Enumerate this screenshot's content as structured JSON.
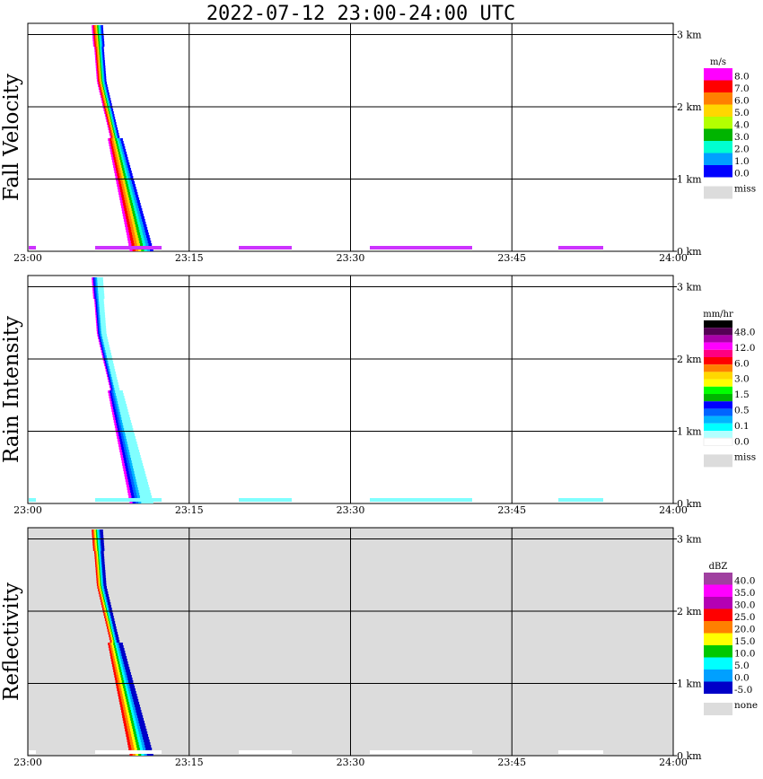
{
  "title": "2022-07-12   23:00-24:00 UTC",
  "chart_data": [
    {
      "type": "heatmap",
      "ylabel": "Fall Velocity",
      "x_ticks": [
        "23:00",
        "23:15",
        "23:30",
        "23:45",
        "24:00"
      ],
      "y_ticks": [
        "0 km",
        "1 km",
        "2 km",
        "3 km"
      ],
      "xlim": [
        "23:00",
        "24:00"
      ],
      "ylim_km": [
        0,
        3.2
      ],
      "grid": true,
      "background": "#ffffff",
      "legend": {
        "unit": "m/s",
        "labels": [
          "8.0",
          "7.0",
          "6.0",
          "5.0",
          "4.0",
          "3.0",
          "2.0",
          "1.0",
          "0.0"
        ],
        "colors": [
          "#ff00ff",
          "#ff0000",
          "#ff8000",
          "#ffd700",
          "#b4ff00",
          "#00b400",
          "#00ffd0",
          "#00a0ff",
          "#0000ff"
        ],
        "miss_label": "miss",
        "miss_color": "#dcdcdc"
      }
    },
    {
      "type": "heatmap",
      "ylabel": "Rain Intensity",
      "x_ticks": [
        "23:00",
        "23:15",
        "23:30",
        "23:45",
        "24:00"
      ],
      "y_ticks": [
        "0 km",
        "1 km",
        "2 km",
        "3 km"
      ],
      "xlim": [
        "23:00",
        "24:00"
      ],
      "ylim_km": [
        0,
        3.2
      ],
      "grid": true,
      "background": "#ffffff",
      "legend": {
        "unit": "mm/hr",
        "labels": [
          "48.0",
          "12.0",
          "6.0",
          "3.0",
          "1.5",
          "0.5",
          "0.1",
          "0.0"
        ],
        "colors": [
          "#000000",
          "#550055",
          "#aa00aa",
          "#ff00ff",
          "#ff0080",
          "#ff0000",
          "#ff8000",
          "#ffd700",
          "#ffff00",
          "#00ff00",
          "#00b400",
          "#0000ff",
          "#0064ff",
          "#00b4ff",
          "#00ffff",
          "#b4ffff",
          "#ffffff"
        ],
        "miss_label": "miss",
        "miss_color": "#dcdcdc"
      }
    },
    {
      "type": "heatmap",
      "ylabel": "Reflectivity",
      "x_ticks": [
        "23:00",
        "23:15",
        "23:30",
        "23:45",
        "24:00"
      ],
      "y_ticks": [
        "0 km",
        "1 km",
        "2 km",
        "3 km"
      ],
      "xlim": [
        "23:00",
        "24:00"
      ],
      "ylim_km": [
        0,
        3.2
      ],
      "grid": true,
      "background": "#dcdcdc",
      "legend": {
        "unit": "dBZ",
        "labels": [
          "40.0",
          "35.0",
          "30.0",
          "25.0",
          "20.0",
          "15.0",
          "10.0",
          "5.0",
          "0.0",
          "-5.0"
        ],
        "colors": [
          "#a040a0",
          "#ff00ff",
          "#b400b4",
          "#ff0000",
          "#ff8000",
          "#ffff00",
          "#00c800",
          "#00ffff",
          "#00a0ff",
          "#0000c8"
        ],
        "miss_label": "none",
        "miss_color": "#dcdcdc"
      }
    }
  ]
}
